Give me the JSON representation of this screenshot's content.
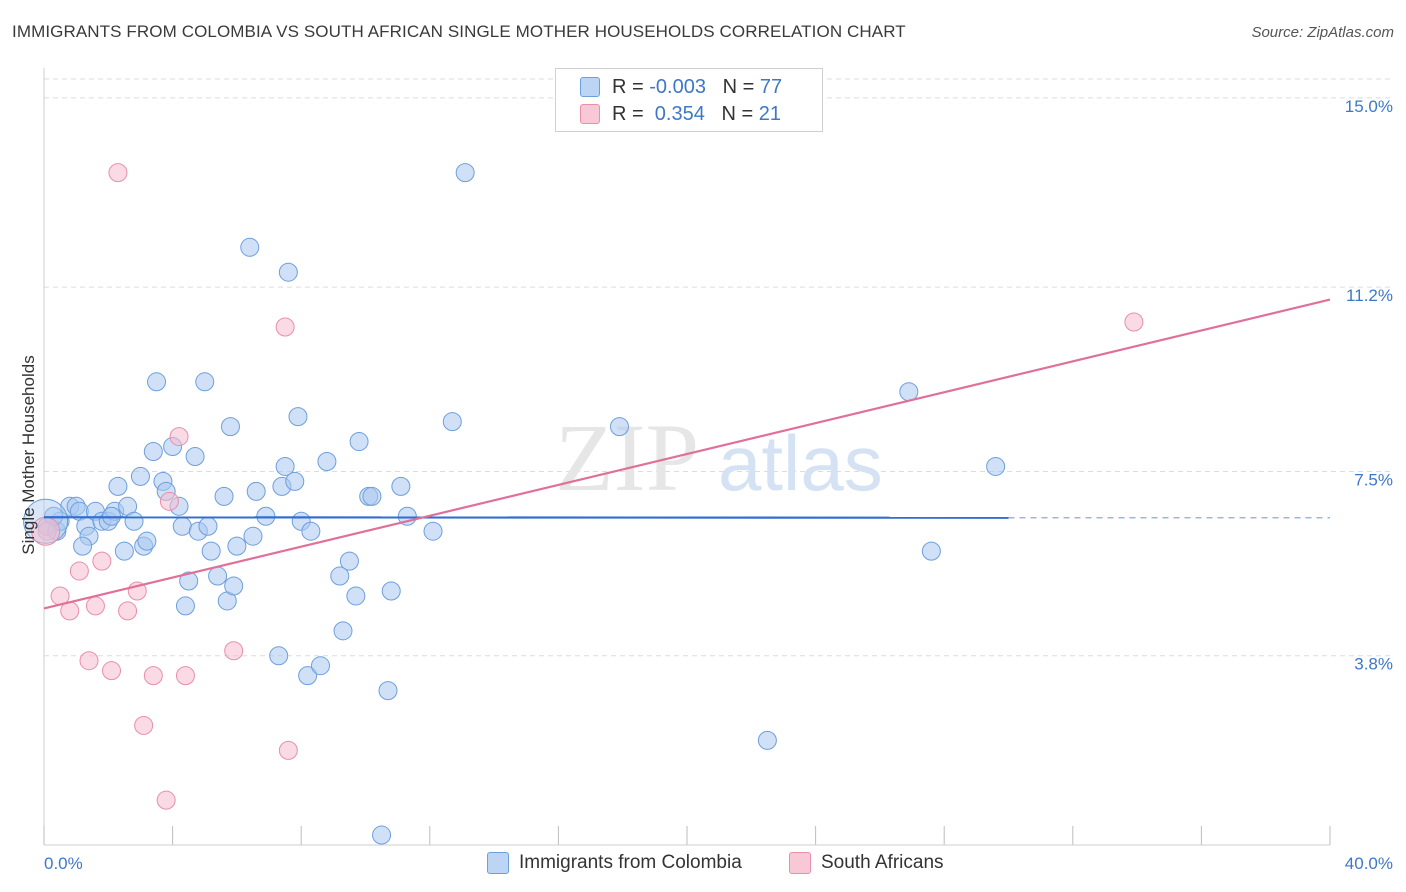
{
  "title": "IMMIGRANTS FROM COLOMBIA VS SOUTH AFRICAN SINGLE MOTHER HOUSEHOLDS CORRELATION CHART",
  "source": "Source: ZipAtlas.com",
  "watermark": {
    "zip": "ZIP",
    "atlas": "atlas"
  },
  "legend": {
    "rows": [
      {
        "r_label": "R = ",
        "r_value": "-0.003",
        "n_label": "N = ",
        "n_value": "77"
      },
      {
        "r_label": "R = ",
        "r_value": " 0.354",
        "n_label": "N = ",
        "n_value": "21"
      }
    ]
  },
  "colors": {
    "blue_fill": "#a9c8f0",
    "blue_stroke": "#6d9fdc",
    "blue_line": "#2f6fd0",
    "pink_fill": "#f6bccd",
    "pink_stroke": "#e88fa9",
    "pink_line": "#e0709a",
    "tick_text": "#3d78c8",
    "grid": "#dcdcdc"
  },
  "chart_data": {
    "type": "scatter",
    "title": "IMMIGRANTS FROM COLOMBIA VS SOUTH AFRICAN SINGLE MOTHER HOUSEHOLDS CORRELATION CHART",
    "xlabel": "",
    "ylabel": "Single Mother Households",
    "xlim": [
      0,
      40
    ],
    "ylim": [
      0,
      15.6
    ],
    "x_tick_labels": [
      "0.0%",
      "40.0%"
    ],
    "y_ticks": [
      3.8,
      7.5,
      11.2,
      15.0
    ],
    "y_tick_labels": [
      "3.8%",
      "7.5%",
      "11.2%",
      "15.0%"
    ],
    "grid": true,
    "legend_position": "top-center",
    "series": [
      {
        "name": "Immigrants from Colombia",
        "color": "#a9c8f0",
        "points": [
          [
            0.1,
            6.4
          ],
          [
            0.4,
            6.3
          ],
          [
            0.5,
            6.5
          ],
          [
            0.8,
            6.8
          ],
          [
            1.0,
            6.8
          ],
          [
            1.1,
            6.7
          ],
          [
            1.3,
            6.4
          ],
          [
            1.4,
            6.2
          ],
          [
            1.6,
            6.7
          ],
          [
            1.8,
            6.5
          ],
          [
            2.0,
            6.5
          ],
          [
            2.2,
            6.7
          ],
          [
            2.3,
            7.2
          ],
          [
            2.5,
            5.9
          ],
          [
            2.6,
            6.8
          ],
          [
            2.8,
            6.5
          ],
          [
            3.0,
            7.4
          ],
          [
            3.1,
            6.0
          ],
          [
            3.2,
            6.1
          ],
          [
            3.4,
            7.9
          ],
          [
            3.5,
            9.3
          ],
          [
            3.7,
            7.3
          ],
          [
            3.8,
            7.1
          ],
          [
            4.0,
            8.0
          ],
          [
            4.2,
            6.8
          ],
          [
            4.3,
            6.4
          ],
          [
            4.4,
            4.8
          ],
          [
            4.5,
            5.3
          ],
          [
            4.7,
            7.8
          ],
          [
            4.8,
            6.3
          ],
          [
            5.0,
            9.3
          ],
          [
            5.1,
            6.4
          ],
          [
            5.2,
            5.9
          ],
          [
            5.4,
            5.4
          ],
          [
            5.6,
            7.0
          ],
          [
            5.7,
            4.9
          ],
          [
            5.8,
            8.4
          ],
          [
            5.9,
            5.2
          ],
          [
            6.0,
            6.0
          ],
          [
            6.4,
            12.0
          ],
          [
            6.5,
            6.2
          ],
          [
            6.6,
            7.1
          ],
          [
            6.9,
            6.6
          ],
          [
            7.3,
            3.8
          ],
          [
            7.4,
            7.2
          ],
          [
            7.5,
            7.6
          ],
          [
            7.6,
            11.5
          ],
          [
            7.8,
            7.3
          ],
          [
            7.9,
            8.6
          ],
          [
            8.0,
            6.5
          ],
          [
            8.2,
            3.4
          ],
          [
            8.3,
            6.3
          ],
          [
            8.6,
            3.6
          ],
          [
            8.8,
            7.7
          ],
          [
            9.2,
            5.4
          ],
          [
            9.3,
            4.3
          ],
          [
            9.5,
            5.7
          ],
          [
            9.7,
            5.0
          ],
          [
            9.8,
            8.1
          ],
          [
            10.1,
            7.0
          ],
          [
            10.2,
            7.0
          ],
          [
            10.5,
            0.2
          ],
          [
            10.7,
            3.1
          ],
          [
            10.8,
            5.1
          ],
          [
            11.1,
            7.2
          ],
          [
            11.3,
            6.6
          ],
          [
            12.1,
            6.3
          ],
          [
            12.7,
            8.5
          ],
          [
            13.1,
            13.5
          ],
          [
            17.9,
            8.4
          ],
          [
            22.5,
            2.1
          ],
          [
            26.9,
            9.1
          ],
          [
            27.6,
            5.9
          ],
          [
            29.6,
            7.6
          ],
          [
            0.3,
            6.6
          ],
          [
            1.2,
            6.0
          ],
          [
            2.1,
            6.6
          ]
        ],
        "trend": {
          "x": [
            0,
            30.0
          ],
          "y": [
            6.58,
            6.57
          ],
          "dashed_to": [
            40.0,
            6.57
          ]
        }
      },
      {
        "name": "South Africans",
        "color": "#f6bccd",
        "points": [
          [
            0.1,
            6.3
          ],
          [
            0.5,
            5.0
          ],
          [
            0.8,
            4.7
          ],
          [
            1.1,
            5.5
          ],
          [
            1.4,
            3.7
          ],
          [
            1.6,
            4.8
          ],
          [
            1.8,
            5.7
          ],
          [
            2.1,
            3.5
          ],
          [
            2.3,
            13.5
          ],
          [
            2.6,
            4.7
          ],
          [
            2.9,
            5.1
          ],
          [
            3.1,
            2.4
          ],
          [
            3.4,
            3.4
          ],
          [
            3.8,
            0.9
          ],
          [
            3.9,
            6.9
          ],
          [
            4.2,
            8.2
          ],
          [
            4.4,
            3.4
          ],
          [
            5.9,
            3.9
          ],
          [
            7.5,
            10.4
          ],
          [
            7.6,
            1.9
          ],
          [
            33.9,
            10.5
          ]
        ],
        "trend": {
          "x": [
            0,
            40.0
          ],
          "y": [
            4.75,
            10.95
          ]
        }
      }
    ]
  },
  "bottom_legend": [
    {
      "label": "Immigrants from Colombia"
    },
    {
      "label": "South Africans"
    }
  ]
}
